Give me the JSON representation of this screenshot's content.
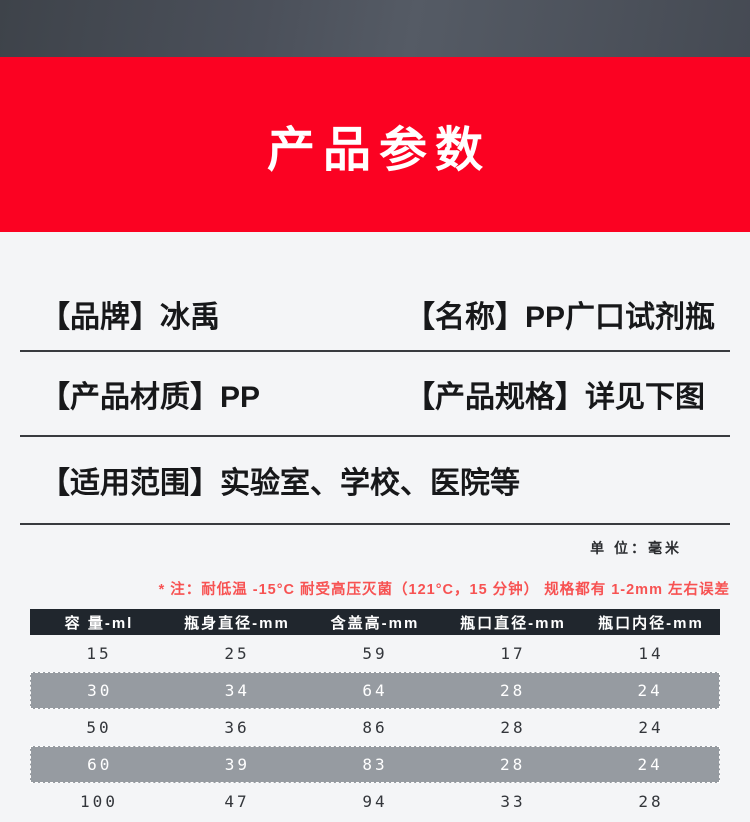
{
  "page": {
    "title_banner": "产品参数",
    "unit_label": "单 位：毫米",
    "note": "* 注：耐低温 -15°C  耐受高压灭菌（121°C，15 分钟） 规格都有 1-2mm 左右误差"
  },
  "specs": [
    {
      "left": "【品牌】冰禹",
      "right": "【名称】PP广口试剂瓶"
    },
    {
      "left": "【产品材质】PP",
      "right": "【产品规格】详见下图"
    },
    {
      "left": "【适用范围】实验室、学校、医院等",
      "right": ""
    }
  ],
  "table": {
    "headers": [
      "容 量-ml",
      "瓶身直径-mm",
      "含盖高-mm",
      "瓶口直径-mm",
      "瓶口内径-mm"
    ],
    "rows": [
      {
        "values": [
          "15",
          "25",
          "59",
          "17",
          "14"
        ],
        "shaded": false
      },
      {
        "values": [
          "30",
          "34",
          "64",
          "28",
          "24"
        ],
        "shaded": true
      },
      {
        "values": [
          "50",
          "36",
          "86",
          "28",
          "24"
        ],
        "shaded": false
      },
      {
        "values": [
          "60",
          "39",
          "83",
          "28",
          "24"
        ],
        "shaded": true
      },
      {
        "values": [
          "100",
          "47",
          "94",
          "33",
          "28"
        ],
        "shaded": false
      }
    ]
  },
  "colors": {
    "banner_red": "#fb0222",
    "note_red": "#f75252",
    "table_header_dark": "#20262d",
    "shaded_row_gray": "#969ba1",
    "top_band_slate": "#4a4f58",
    "page_bg": "#f4f5f7"
  },
  "chart_data": {
    "type": "table",
    "title": "产品参数",
    "columns": [
      "容量-ml",
      "瓶身直径-mm",
      "含盖高-mm",
      "瓶口直径-mm",
      "瓶口内径-mm"
    ],
    "rows": [
      [
        15,
        25,
        59,
        17,
        14
      ],
      [
        30,
        34,
        64,
        28,
        24
      ],
      [
        50,
        36,
        86,
        28,
        24
      ],
      [
        60,
        39,
        83,
        28,
        24
      ],
      [
        100,
        47,
        94,
        33,
        28
      ]
    ]
  }
}
